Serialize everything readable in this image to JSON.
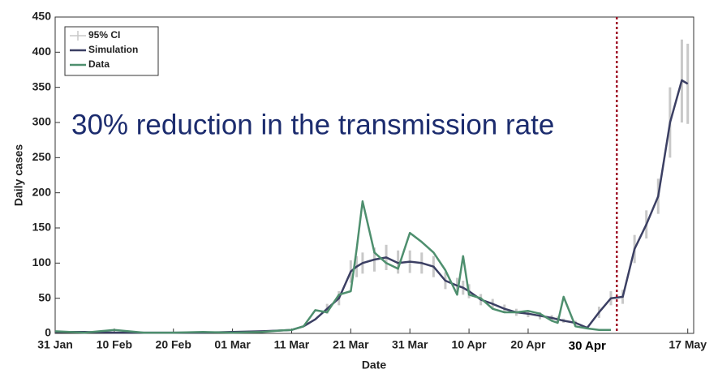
{
  "chart_data": {
    "type": "line",
    "annotation": "30% reduction in the transmission rate",
    "xlabel": "Date",
    "ylabel": "Daily cases",
    "x": [
      "31 Jan",
      "5 Feb",
      "10 Feb",
      "15 Feb",
      "20 Feb",
      "25 Feb",
      "1 Mar",
      "6 Mar",
      "9 Mar",
      "11 Mar",
      "13 Mar",
      "15 Mar",
      "17 Mar",
      "19 Mar",
      "21 Mar",
      "22 Mar",
      "23 Mar",
      "25 Mar",
      "27 Mar",
      "29 Mar",
      "31 Mar",
      "2 Apr",
      "4 Apr",
      "6 Apr",
      "8 Apr",
      "9 Apr",
      "10 Apr",
      "12 Apr",
      "14 Apr",
      "16 Apr",
      "18 Apr",
      "20 Apr",
      "22 Apr",
      "24 Apr",
      "25 Apr",
      "26 Apr",
      "28 Apr",
      "30 Apr",
      "2 May",
      "4 May",
      "6 May",
      "8 May",
      "10 May",
      "12 May",
      "14 May",
      "16 May",
      "17 May"
    ],
    "series": [
      {
        "name": "95% CI",
        "color": "#c8c8c8",
        "lower": [
          null,
          null,
          null,
          null,
          null,
          null,
          null,
          null,
          null,
          null,
          null,
          null,
          28,
          40,
          72,
          80,
          85,
          88,
          90,
          85,
          86,
          85,
          80,
          63,
          57,
          55,
          50,
          40,
          35,
          29,
          25,
          23,
          20,
          18,
          16,
          15,
          12,
          6,
          22,
          40,
          42,
          100,
          135,
          170,
          250,
          300,
          298
        ],
        "upper": [
          null,
          null,
          null,
          null,
          null,
          null,
          null,
          null,
          null,
          null,
          null,
          null,
          42,
          60,
          104,
          110,
          115,
          122,
          126,
          118,
          118,
          115,
          110,
          87,
          79,
          75,
          70,
          56,
          49,
          41,
          35,
          33,
          30,
          26,
          24,
          21,
          18,
          10,
          38,
          60,
          62,
          140,
          175,
          220,
          350,
          418,
          412
        ]
      },
      {
        "name": "Simulation",
        "color": "#3b3f63",
        "values": [
          2,
          2,
          1,
          1,
          1,
          1,
          2,
          3,
          4,
          5,
          10,
          20,
          35,
          50,
          88,
          95,
          100,
          105,
          108,
          100,
          102,
          100,
          95,
          75,
          68,
          65,
          60,
          48,
          42,
          35,
          30,
          28,
          25,
          22,
          20,
          18,
          15,
          8,
          30,
          50,
          52,
          120,
          155,
          195,
          300,
          360,
          355
        ]
      },
      {
        "name": "Data",
        "color": "#4e8f6e",
        "values": [
          3,
          1,
          5,
          1,
          1,
          2,
          1,
          2,
          4,
          5,
          10,
          33,
          30,
          55,
          60,
          120,
          188,
          115,
          100,
          92,
          143,
          130,
          115,
          90,
          55,
          110,
          55,
          50,
          35,
          30,
          30,
          32,
          28,
          18,
          15,
          52,
          10,
          7,
          5,
          5,
          null,
          null,
          null,
          null,
          null,
          null,
          null
        ]
      }
    ],
    "xlim": [
      "31 Jan",
      "18 May"
    ],
    "xticks": [
      "31 Jan",
      "10 Feb",
      "20 Feb",
      "01 Mar",
      "11 Mar",
      "21 Mar",
      "31 Mar",
      "10 Apr",
      "20 Apr",
      "17 May"
    ],
    "ylim": [
      0,
      450
    ],
    "yticks": [
      0,
      50,
      100,
      150,
      200,
      250,
      300,
      350,
      400,
      450
    ],
    "date_annotation": "30 Apr",
    "vline": {
      "x": "5 May",
      "color": "#a0162a"
    },
    "legend": "upper left"
  }
}
